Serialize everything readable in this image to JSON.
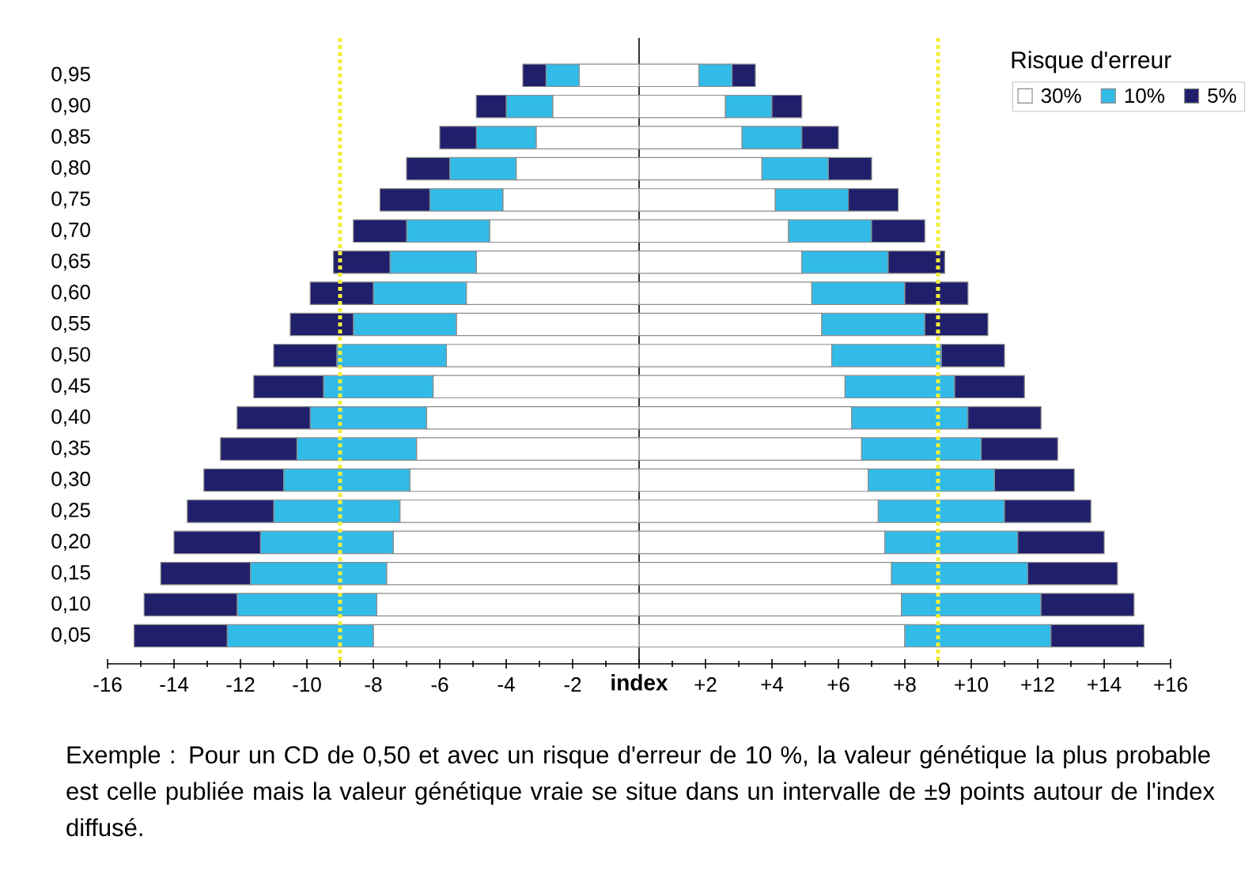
{
  "chart_data": {
    "type": "bar",
    "orientation": "horizontal",
    "stacked": true,
    "categories": [
      "0,95",
      "0,90",
      "0,85",
      "0,80",
      "0,75",
      "0,70",
      "0,65",
      "0,60",
      "0,55",
      "0,50",
      "0,45",
      "0,40",
      "0,35",
      "0,30",
      "0,25",
      "0,20",
      "0,15",
      "0,10",
      "0,05"
    ],
    "series": [
      {
        "name": "30%",
        "color": "#ffffff",
        "values": [
          1.8,
          2.6,
          3.1,
          3.7,
          4.1,
          4.5,
          4.9,
          5.2,
          5.5,
          5.8,
          6.2,
          6.4,
          6.7,
          6.9,
          7.2,
          7.4,
          7.6,
          7.9,
          8.0
        ]
      },
      {
        "name": "10%",
        "color": "#33bbe8",
        "values": [
          1.0,
          1.4,
          1.8,
          2.0,
          2.2,
          2.5,
          2.6,
          2.8,
          3.1,
          3.3,
          3.3,
          3.5,
          3.6,
          3.8,
          3.8,
          4.0,
          4.1,
          4.2,
          4.4
        ]
      },
      {
        "name": "5%",
        "color": "#1f1f6b",
        "values": [
          0.7,
          0.9,
          1.1,
          1.3,
          1.5,
          1.6,
          1.7,
          1.9,
          1.9,
          1.9,
          2.1,
          2.2,
          2.3,
          2.4,
          2.6,
          2.6,
          2.7,
          2.8,
          2.8
        ]
      },
      {
        "color": "#ffffff",
        "values": [
          -1.8,
          -2.6,
          -3.1,
          -3.7,
          -4.1,
          -4.5,
          -4.9,
          -5.2,
          -5.5,
          -5.8,
          -6.2,
          -6.4,
          -6.7,
          -6.9,
          -7.2,
          -7.4,
          -7.6,
          -7.9,
          -8.0
        ]
      },
      {
        "color": "#33bbe8",
        "values": [
          -1.0,
          -1.4,
          -1.8,
          -2.0,
          -2.2,
          -2.5,
          -2.6,
          -2.8,
          -3.1,
          -3.3,
          -3.3,
          -3.5,
          -3.6,
          -3.8,
          -3.8,
          -4.0,
          -4.1,
          -4.2,
          -4.4
        ]
      },
      {
        "color": "#1f1f6b",
        "values": [
          -0.7,
          -0.9,
          -1.1,
          -1.3,
          -1.5,
          -1.6,
          -1.7,
          -1.9,
          -1.9,
          -1.9,
          -2.1,
          -2.2,
          -2.3,
          -2.4,
          -2.6,
          -2.6,
          -2.7,
          -2.8,
          -2.8
        ]
      }
    ],
    "xlim": [
      -16,
      16
    ],
    "xticks": [
      -16,
      -14,
      -12,
      -10,
      -8,
      -6,
      -4,
      -2,
      {
        "value": 0,
        "label": null
      },
      {
        "value": 2,
        "label": "+2"
      },
      {
        "value": 4,
        "label": "+4"
      },
      {
        "value": 6,
        "label": "+6"
      },
      {
        "value": 8,
        "label": "+8"
      },
      {
        "value": 10,
        "label": "+10"
      },
      {
        "value": 12,
        "label": "+12"
      },
      {
        "value": 14,
        "label": "+14"
      },
      {
        "value": 16,
        "label": "+16"
      }
    ],
    "xlabel": "index",
    "legend": "top right",
    "legend_title": "Risque d'erreur",
    "ref_lines": [
      {
        "axis": "x",
        "value": -9,
        "color": "#f2ee3a",
        "line_style": "dotted"
      },
      {
        "axis": "x",
        "value": 9,
        "color": "#f2ee3a",
        "line_style": "dotted"
      }
    ],
    "annotations": [
      "Exemple : Pour un CD de 0,50 et avec un risque d'erreur de 10 %, la valeur génétique la plus probable est celle publiée mais la valeur génétique vraie se situe dans un intervalle de ±9 points autour de l'index diffusé."
    ]
  }
}
